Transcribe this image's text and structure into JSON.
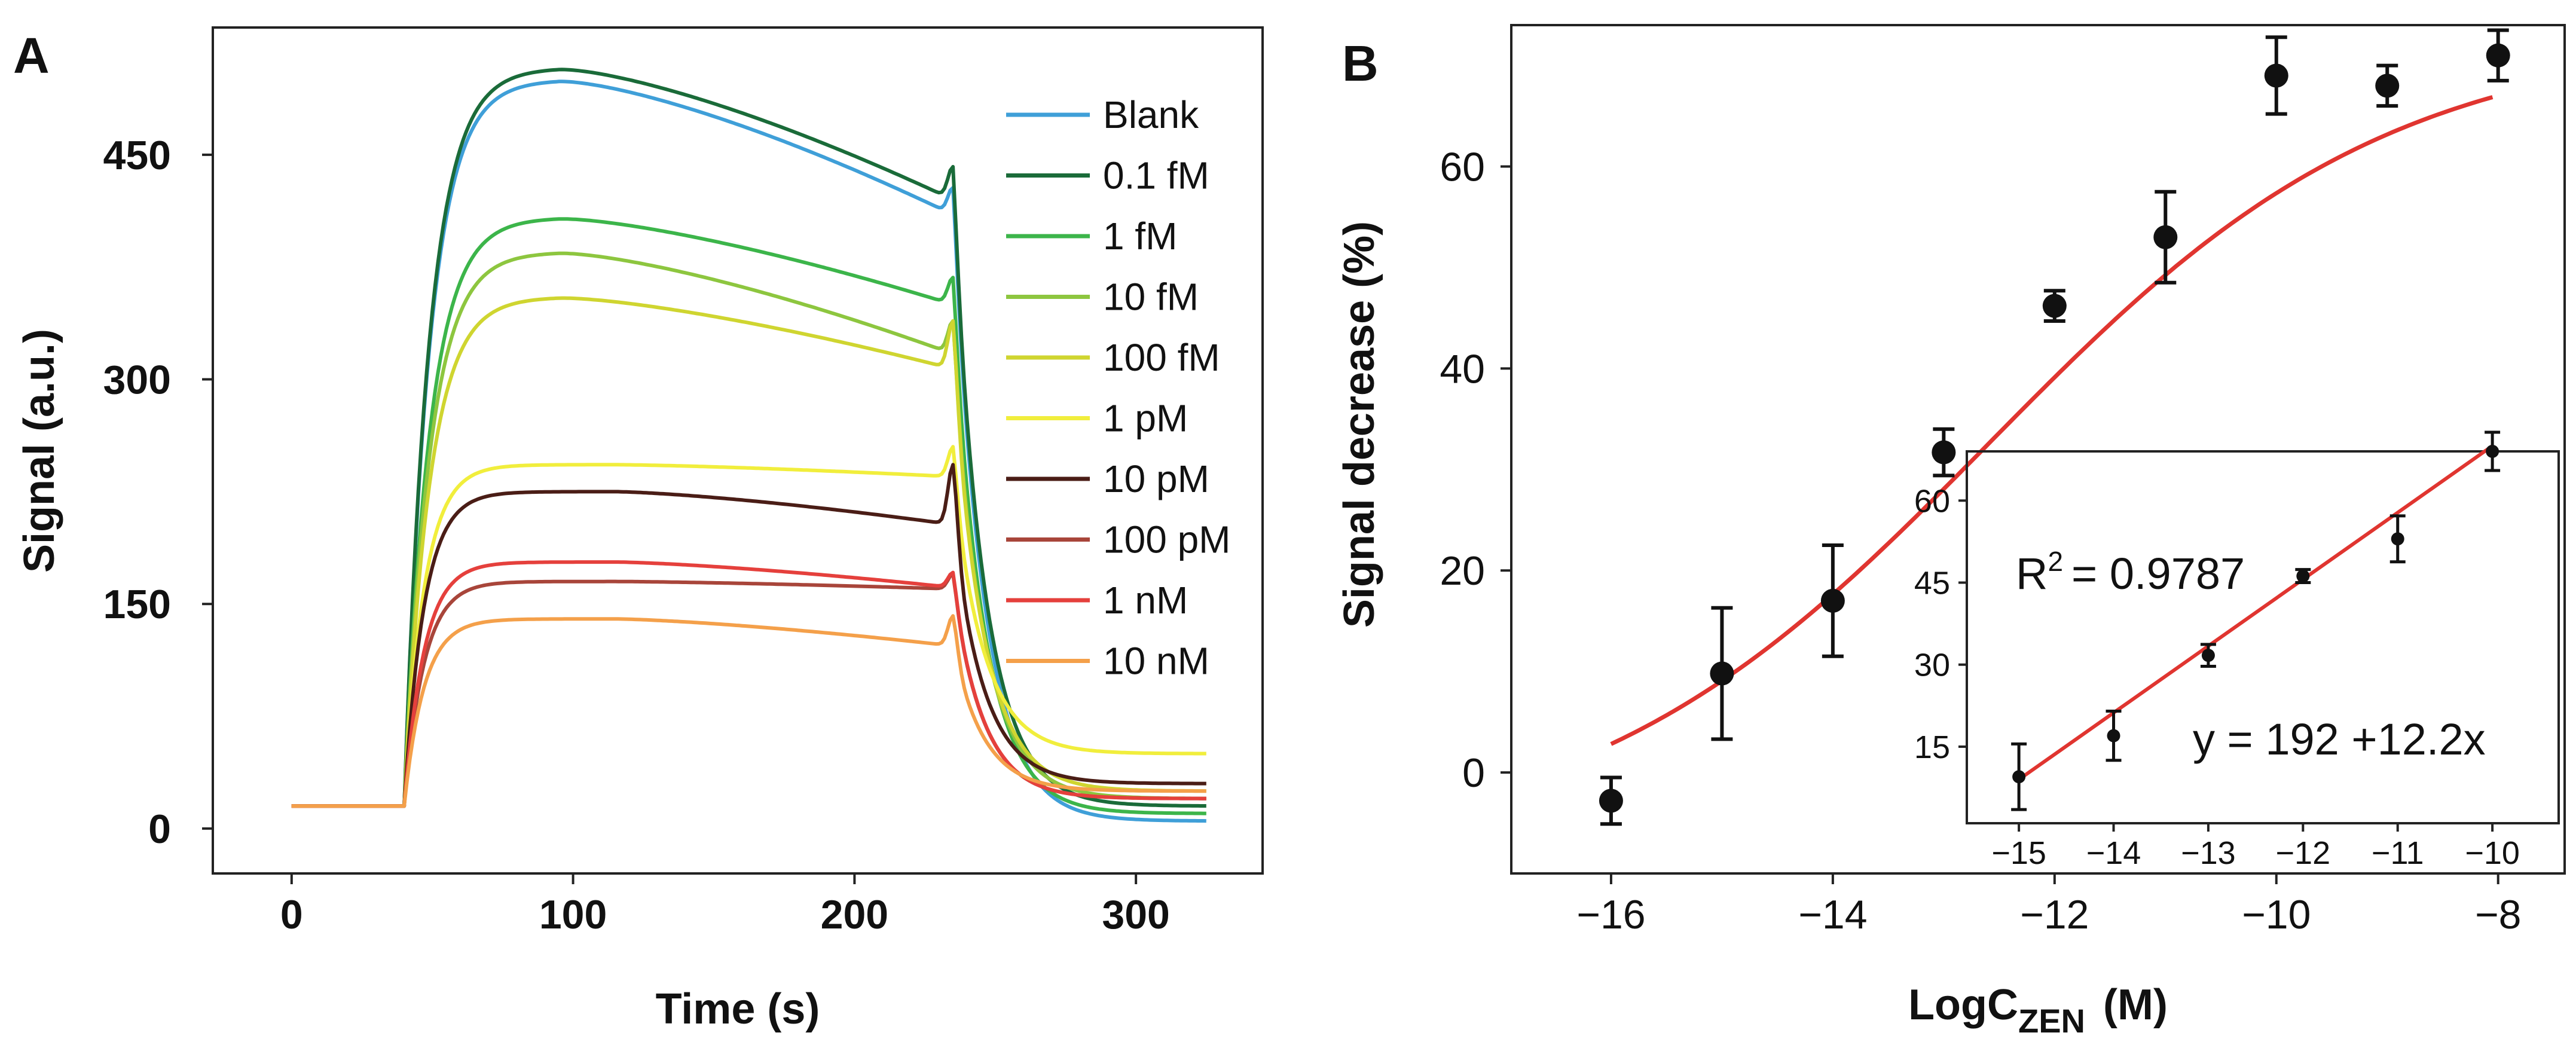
{
  "chart_data": [
    {
      "panel": "A",
      "type": "line",
      "title": "",
      "xlabel": "Time (s)",
      "ylabel": "Signal (a.u.)",
      "xlim": [
        -28,
        345
      ],
      "ylim": [
        -30,
        535
      ],
      "xticks": [
        0,
        100,
        200,
        300
      ],
      "yticks": [
        0,
        150,
        300,
        450
      ],
      "legend_position": "top-right",
      "series": [
        {
          "name": "Blank",
          "color": "#3f9fd8",
          "plateau": 500,
          "decay": 90,
          "spike": 18,
          "end": 5
        },
        {
          "name": "0.1 fM",
          "color": "#1a6b39",
          "plateau": 508,
          "decay": 88,
          "spike": 22,
          "end": 15
        },
        {
          "name": "1 fM",
          "color": "#3cb54a",
          "plateau": 408,
          "decay": 58,
          "spike": 18,
          "end": 10
        },
        {
          "name": "10 fM",
          "color": "#8dc63f",
          "plateau": 385,
          "decay": 68,
          "spike": 22,
          "end": 20
        },
        {
          "name": "100 fM",
          "color": "#cfd530",
          "plateau": 355,
          "decay": 48,
          "spike": 32,
          "end": 25
        },
        {
          "name": "1 pM",
          "color": "#f1ee3c",
          "plateau": 243,
          "decay": 8,
          "spike": 20,
          "end": 50
        },
        {
          "name": "10 pM",
          "color": "#4a1d16",
          "plateau": 225,
          "decay": 22,
          "spike": 40,
          "end": 30
        },
        {
          "name": "100 pM",
          "color": "#a8453a",
          "plateau": 165,
          "decay": 5,
          "spike": 10,
          "end": 20
        },
        {
          "name": "1 nM",
          "color": "#e5403c",
          "plateau": 178,
          "decay": 17,
          "spike": 10,
          "end": 20
        },
        {
          "name": "10 nM",
          "color": "#f4a04a",
          "plateau": 140,
          "decay": 18,
          "spike": 20,
          "end": 25
        }
      ]
    },
    {
      "panel": "B",
      "type": "scatter",
      "title": "",
      "xlabel_main": "LogC",
      "xlabel_sub": "ZEN",
      "xlabel_unit": "(M)",
      "ylabel": "Signal decrease (%)",
      "xlim": [
        -16.9,
        -7.4
      ],
      "ylim": [
        -10,
        74
      ],
      "xticks": [
        "−16",
        "−14",
        "−12",
        "−10",
        "−8"
      ],
      "xtick_values": [
        -16,
        -14,
        -12,
        -10,
        -8
      ],
      "yticks": [
        0,
        20,
        40,
        60
      ],
      "fit_color": "#e03530",
      "x": [
        -16,
        -15,
        -14,
        -13,
        -12,
        -11,
        -10,
        -9,
        -8
      ],
      "y": [
        -2.8,
        9.8,
        17.0,
        31.7,
        46.2,
        53.0,
        69.0,
        68.0,
        71.0
      ],
      "err": [
        2.3,
        6.5,
        5.5,
        2.3,
        1.5,
        4.5,
        3.8,
        2.0,
        2.5
      ],
      "fit_sigmoid": {
        "bottom": -8,
        "top": 73,
        "x50": -12.6,
        "slope": 0.55
      },
      "inset": {
        "xlim": [
          -15.55,
          -9.3
        ],
        "ylim": [
          1,
          69
        ],
        "xticks": [
          "−15",
          "−14",
          "−13",
          "−12",
          "−11",
          "−10"
        ],
        "xtick_values": [
          -15,
          -14,
          -13,
          -12,
          -11,
          -10
        ],
        "yticks": [
          15,
          30,
          45,
          60
        ],
        "x": [
          -15,
          -14,
          -13,
          -12,
          -11,
          -10
        ],
        "y": [
          9.5,
          17.0,
          31.7,
          46.2,
          53.0,
          69.0
        ],
        "err": [
          6.0,
          4.5,
          2.0,
          1.2,
          4.2,
          3.5
        ],
        "fit_line": {
          "x": [
            -15,
            -10
          ],
          "y": [
            9,
            70
          ]
        },
        "r2_base": "R",
        "r2_exp": "2",
        "r2_value": "= 0.9787",
        "equation": "y = 192 +12.2x"
      }
    }
  ],
  "panels": {
    "a_letter": "A",
    "b_letter": "B"
  }
}
